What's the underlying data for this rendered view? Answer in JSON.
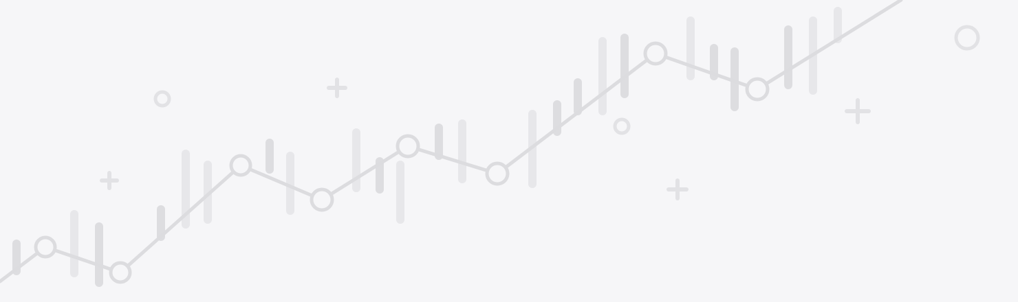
{
  "colors": {
    "background": "#f6f6f8",
    "bar_faint": "#e7e7ea",
    "bar_mid": "#dddde0",
    "trend_line": "#dcdcdf",
    "node_fill": "#f6f6f8",
    "decoration": "#e2e2e5"
  },
  "icons": {
    "decoration_rings": "circle-outline-icon",
    "decoration_pluses": "plus-icon"
  }
}
